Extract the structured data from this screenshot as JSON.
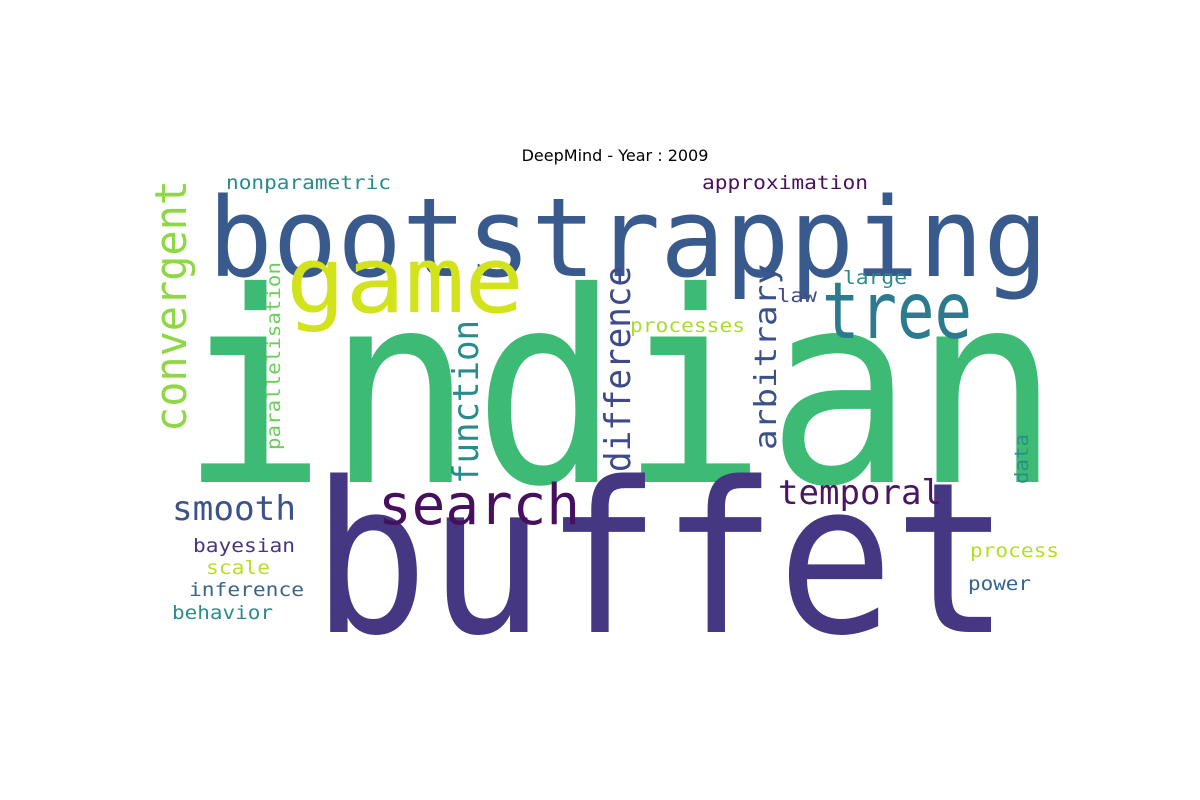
{
  "title": "DeepMind - Year : 2009",
  "words": [
    {
      "text": "indian",
      "color": "#3dbb75"
    },
    {
      "text": "buffet",
      "color": "#463783"
    },
    {
      "text": "bootstrapping",
      "color": "#385a8c"
    },
    {
      "text": "game",
      "color": "#d2e21b"
    },
    {
      "text": "tree",
      "color": "#2c7a8e"
    },
    {
      "text": "search",
      "color": "#46105f"
    },
    {
      "text": "convergent",
      "color": "#8fd744"
    },
    {
      "text": "function",
      "color": "#2a8b8e"
    },
    {
      "text": "difference",
      "color": "#3e4a89"
    },
    {
      "text": "arbitrary",
      "color": "#3a5289"
    },
    {
      "text": "temporal",
      "color": "#4b1560"
    },
    {
      "text": "smooth",
      "color": "#3b528b"
    },
    {
      "text": "nonparametric",
      "color": "#2a8a8d"
    },
    {
      "text": "approximation",
      "color": "#4b0f5e"
    },
    {
      "text": "large",
      "color": "#2b8b8d"
    },
    {
      "text": "law",
      "color": "#434b84"
    },
    {
      "text": "processes",
      "color": "#a8db34"
    },
    {
      "text": "parallelisation",
      "color": "#6ccd5a"
    },
    {
      "text": "data",
      "color": "#2a8e8b"
    },
    {
      "text": "bayesian",
      "color": "#48357f"
    },
    {
      "text": "scale",
      "color": "#b8de29"
    },
    {
      "text": "inference",
      "color": "#39648c"
    },
    {
      "text": "behavior",
      "color": "#2c8c8a"
    },
    {
      "text": "process",
      "color": "#b5dd2b"
    },
    {
      "text": "power",
      "color": "#33648e"
    }
  ]
}
